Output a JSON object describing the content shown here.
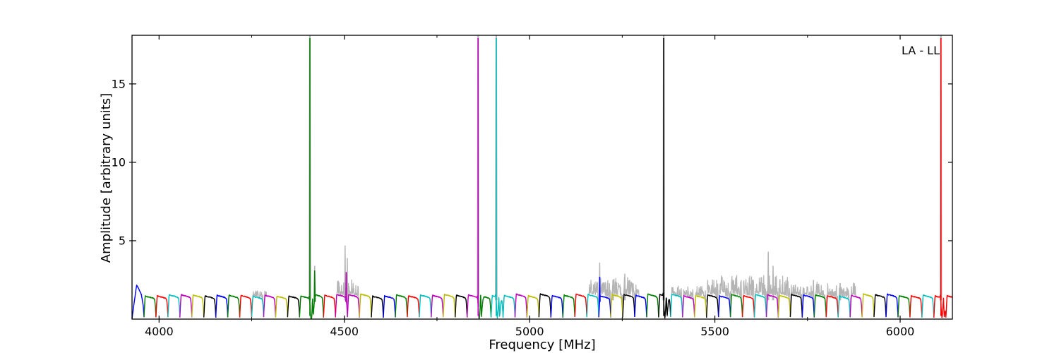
{
  "figure": {
    "background": "#ffffff",
    "kind": "matplotlib-spectrum-plot"
  },
  "chart_data": {
    "type": "line",
    "title": "",
    "annotation": "LA - LL",
    "xlabel": "Frequency [MHz]",
    "ylabel": "Amplitude [arbitrary units]",
    "xlim": [
      3927,
      6141
    ],
    "ylim": [
      0,
      18.1
    ],
    "xticks": [
      4000,
      4500,
      5000,
      5500,
      6000
    ],
    "xticks_minor": [
      4250,
      4750,
      5250,
      5750
    ],
    "yticks": [
      5,
      10,
      15
    ],
    "grid": false,
    "axis_color": "#000000",
    "palette": {
      "b": "#0000ff",
      "g": "#008000",
      "r": "#ff0000",
      "c": "#00bfbf",
      "m": "#bf00bf",
      "y": "#bfbf00",
      "k": "#000000",
      "gray": "#b5b5b5"
    },
    "subbands": {
      "start_mhz": 3927,
      "width_mhz": 32.3,
      "count": 69,
      "color_cycle": [
        "b",
        "g",
        "r",
        "c",
        "m",
        "y",
        "k"
      ],
      "plateau_amp": 1.48,
      "first_subband_peak": 2.05,
      "color_overrides": {
        "68": "r"
      }
    },
    "spikes": [
      {
        "f": 4407,
        "h": 18.1,
        "color": "g",
        "clipped": true
      },
      {
        "f": 4420,
        "h": 3.1,
        "color": "g",
        "clipped": false
      },
      {
        "f": 4505,
        "h": 3.0,
        "color": "m",
        "clipped": false
      },
      {
        "f": 4861,
        "h": 18.1,
        "color": "m",
        "clipped": true
      },
      {
        "f": 4910,
        "h": 18.1,
        "color": "c",
        "clipped": true
      },
      {
        "f": 5189,
        "h": 2.7,
        "color": "b",
        "clipped": false
      },
      {
        "f": 5362,
        "h": 18.1,
        "color": "k",
        "clipped": true
      },
      {
        "f": 6110,
        "h": 18.1,
        "color": "r",
        "clipped": true
      }
    ],
    "gray_spikes": [
      {
        "f": 4407,
        "h": 18.1
      },
      {
        "f": 4420,
        "h": 3.4
      },
      {
        "f": 4502,
        "h": 4.7
      },
      {
        "f": 4508,
        "h": 3.9
      },
      {
        "f": 4861,
        "h": 18.1
      },
      {
        "f": 4910,
        "h": 18.1
      },
      {
        "f": 5189,
        "h": 3.6
      },
      {
        "f": 5225,
        "h": 2.5
      },
      {
        "f": 5257,
        "h": 2.9
      },
      {
        "f": 5362,
        "h": 18.1
      },
      {
        "f": 5644,
        "h": 4.3
      },
      {
        "f": 5657,
        "h": 3.4
      },
      {
        "f": 5766,
        "h": 2.5
      },
      {
        "f": 5838,
        "h": 2.3
      },
      {
        "f": 6110,
        "h": 18.1
      }
    ],
    "gray_fuzz_regions": [
      {
        "f0": 4248,
        "f1": 4290,
        "amp": 0.35
      },
      {
        "f0": 4480,
        "f1": 4540,
        "amp": 0.7
      },
      {
        "f0": 5160,
        "f1": 5295,
        "amp": 0.8
      },
      {
        "f0": 5380,
        "f1": 5475,
        "amp": 0.5
      },
      {
        "f0": 5475,
        "f1": 5705,
        "amp": 0.95
      },
      {
        "f0": 5705,
        "f1": 5880,
        "amp": 0.6
      }
    ]
  }
}
